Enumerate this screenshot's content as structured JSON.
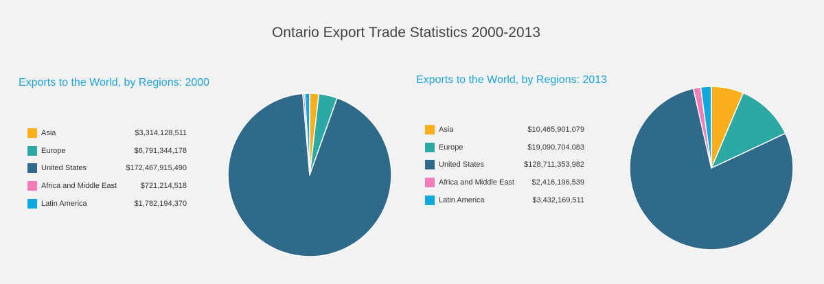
{
  "page": {
    "title": "Ontario Export Trade Statistics 2000-2013"
  },
  "colors": {
    "background": "#f2f2f2",
    "title_text": "#444444",
    "chart_title": "#1fa3d9",
    "asia": "#f9ae1b",
    "europe": "#2ea8a2",
    "united_states": "#306a8a",
    "africa_middle_east": "#f27db9",
    "latin_america": "#11a8e0"
  },
  "chart_data": [
    {
      "type": "pie",
      "title": "Exports to the World, by Regions: 2000",
      "legend_position": "left",
      "slices": [
        {
          "label": "Asia",
          "value": 3314128511,
          "value_label": "$3,314,128,511",
          "color": "#f9ae1b"
        },
        {
          "label": "Europe",
          "value": 6791344178,
          "value_label": "$6,791,344,178",
          "color": "#2ea8a2"
        },
        {
          "label": "United States",
          "value": 172467915490,
          "value_label": "$172,467,915,490",
          "color": "#306a8a"
        },
        {
          "label": "Africa and Middle East",
          "value": 721214518,
          "value_label": "$721,214,518",
          "color": "#f27db9"
        },
        {
          "label": "Latin America",
          "value": 1782194370,
          "value_label": "$1,782,194,370",
          "color": "#11a8e0"
        }
      ]
    },
    {
      "type": "pie",
      "title": "Exports to the World, by Regions: 2013",
      "legend_position": "left",
      "slices": [
        {
          "label": "Asia",
          "value": 10465901079,
          "value_label": "$10,465,901,079",
          "color": "#f9ae1b"
        },
        {
          "label": "Europe",
          "value": 19090704083,
          "value_label": "$19,090,704,083",
          "color": "#2ea8a2"
        },
        {
          "label": "United States",
          "value": 128711353982,
          "value_label": "$128,711,353,982",
          "color": "#306a8a"
        },
        {
          "label": "Africa and Middle East",
          "value": 2416196539,
          "value_label": "$2,416,196,539",
          "color": "#f27db9"
        },
        {
          "label": "Latin America",
          "value": 3432169511,
          "value_label": "$3,432,169,511",
          "color": "#11a8e0"
        }
      ]
    }
  ]
}
